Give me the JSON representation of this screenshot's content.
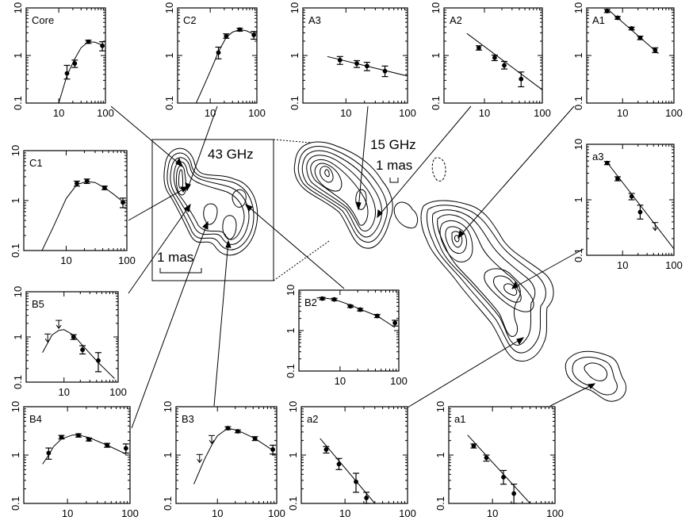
{
  "figure": {
    "contour_labels": [
      "43 GHz",
      "15 GHz"
    ],
    "scale_labels": [
      "1 mas",
      "1 mas"
    ]
  },
  "chart_data": [
    {
      "type": "scatter",
      "title": "Core",
      "xlog": true,
      "ylog": true,
      "xlim": [
        2,
        100
      ],
      "ylim": [
        0.1,
        10
      ],
      "xticklabels": [
        "10",
        "100"
      ],
      "yticklabels": [
        "0.1",
        "1",
        "10"
      ],
      "points": [
        {
          "x": 15,
          "y": 0.42,
          "lo": 0.32,
          "hi": 0.62
        },
        {
          "x": 22,
          "y": 0.68,
          "lo": 0.56,
          "hi": 0.8
        },
        {
          "x": 43,
          "y": 1.95,
          "lo": 1.8,
          "hi": 2.1
        },
        {
          "x": 86,
          "y": 1.6,
          "lo": 1.25,
          "hi": 1.95
        }
      ],
      "curve": [
        [
          10,
          0.1
        ],
        [
          15,
          0.38
        ],
        [
          22,
          0.85
        ],
        [
          30,
          1.45
        ],
        [
          43,
          1.95
        ],
        [
          60,
          1.9
        ],
        [
          86,
          1.65
        ]
      ]
    },
    {
      "type": "scatter",
      "title": "C2",
      "xlog": true,
      "ylog": true,
      "xlim": [
        2,
        100
      ],
      "ylim": [
        0.1,
        10
      ],
      "xticklabels": [
        "10",
        "100"
      ],
      "yticklabels": [
        "0.1",
        "1",
        "10"
      ],
      "points": [
        {
          "x": 15,
          "y": 1.15,
          "lo": 0.85,
          "hi": 1.5
        },
        {
          "x": 22,
          "y": 2.55,
          "lo": 2.3,
          "hi": 2.85
        },
        {
          "x": 43,
          "y": 3.5,
          "lo": 3.25,
          "hi": 3.75
        },
        {
          "x": 86,
          "y": 2.7,
          "lo": 2.2,
          "hi": 3.2
        }
      ],
      "curve": [
        [
          5,
          0.1
        ],
        [
          8,
          0.28
        ],
        [
          12,
          0.7
        ],
        [
          15,
          1.2
        ],
        [
          22,
          2.4
        ],
        [
          30,
          3.1
        ],
        [
          43,
          3.5
        ],
        [
          60,
          3.3
        ],
        [
          86,
          2.8
        ]
      ]
    },
    {
      "type": "scatter",
      "title": "A3",
      "xlog": true,
      "ylog": true,
      "xlim": [
        2,
        100
      ],
      "ylim": [
        0.1,
        10
      ],
      "xticklabels": [
        "10",
        "100"
      ],
      "yticklabels": [
        "0.1",
        "1",
        "10"
      ],
      "points": [
        {
          "x": 8,
          "y": 0.8,
          "lo": 0.65,
          "hi": 0.95
        },
        {
          "x": 15,
          "y": 0.68,
          "lo": 0.56,
          "hi": 0.78
        },
        {
          "x": 22,
          "y": 0.6,
          "lo": 0.48,
          "hi": 0.72
        },
        {
          "x": 43,
          "y": 0.47,
          "lo": 0.36,
          "hi": 0.6
        }
      ],
      "curve": [
        [
          5,
          0.95
        ],
        [
          100,
          0.37
        ]
      ]
    },
    {
      "type": "scatter",
      "title": "A2",
      "xlog": true,
      "ylog": true,
      "xlim": [
        2,
        100
      ],
      "ylim": [
        0.1,
        10
      ],
      "xticklabels": [
        "10",
        "100"
      ],
      "yticklabels": [
        "0.1",
        "1",
        "10"
      ],
      "points": [
        {
          "x": 8,
          "y": 1.45,
          "lo": 1.3,
          "hi": 1.6
        },
        {
          "x": 15,
          "y": 0.9,
          "lo": 0.78,
          "hi": 1.02
        },
        {
          "x": 22,
          "y": 0.62,
          "lo": 0.52,
          "hi": 0.75
        },
        {
          "x": 43,
          "y": 0.32,
          "lo": 0.22,
          "hi": 0.45
        }
      ],
      "curve": [
        [
          5,
          2.9
        ],
        [
          100,
          0.19
        ]
      ]
    },
    {
      "type": "scatter",
      "title": "A1",
      "xlog": true,
      "ylog": true,
      "xlim": [
        2,
        100
      ],
      "ylim": [
        0.1,
        10
      ],
      "xticklabels": [
        "10",
        "100"
      ],
      "yticklabels": [
        "0.1",
        "1",
        "10"
      ],
      "points": [
        {
          "x": 5,
          "y": 8.6,
          "lo": 8,
          "hi": 9.3
        },
        {
          "x": 8,
          "y": 6.2,
          "lo": 5.8,
          "hi": 6.6
        },
        {
          "x": 15,
          "y": 3.7,
          "lo": 3.45,
          "hi": 3.95
        },
        {
          "x": 22,
          "y": 2.35,
          "lo": 2.15,
          "hi": 2.55
        },
        {
          "x": 43,
          "y": 1.3,
          "lo": 1.15,
          "hi": 1.45
        }
      ],
      "curve": [
        [
          5,
          9.6
        ],
        [
          50,
          1.1
        ]
      ]
    },
    {
      "type": "scatter",
      "title": "a3",
      "xlog": true,
      "ylog": true,
      "xlim": [
        2,
        100
      ],
      "ylim": [
        0.1,
        10
      ],
      "xticklabels": [
        "10",
        "100"
      ],
      "yticklabels": [
        "0.1",
        "1",
        "10"
      ],
      "points": [
        {
          "x": 5,
          "y": 4.6,
          "lo": 4.3,
          "hi": 4.9
        },
        {
          "x": 8,
          "y": 2.4,
          "lo": 2.2,
          "hi": 2.6
        },
        {
          "x": 15,
          "y": 1.15,
          "lo": 1.0,
          "hi": 1.3
        },
        {
          "x": 22,
          "y": 0.6,
          "lo": 0.45,
          "hi": 0.8
        }
      ],
      "limits": [
        {
          "x": 43,
          "y": 0.33
        }
      ],
      "curve": [
        [
          5,
          4.7
        ],
        [
          100,
          0.13
        ]
      ]
    },
    {
      "type": "scatter",
      "title": "C1",
      "xlog": true,
      "ylog": true,
      "xlim": [
        2,
        100
      ],
      "ylim": [
        0.1,
        10
      ],
      "xticklabels": [
        "10",
        "100"
      ],
      "yticklabels": [
        "0.1",
        "1",
        "10"
      ],
      "points": [
        {
          "x": 15,
          "y": 2.2,
          "lo": 1.95,
          "hi": 2.45
        },
        {
          "x": 22,
          "y": 2.45,
          "lo": 2.2,
          "hi": 2.7
        },
        {
          "x": 43,
          "y": 1.8,
          "lo": 1.65,
          "hi": 1.95
        },
        {
          "x": 86,
          "y": 0.92,
          "lo": 0.72,
          "hi": 1.12
        }
      ],
      "curve": [
        [
          4,
          0.1
        ],
        [
          6,
          0.28
        ],
        [
          10,
          1.1
        ],
        [
          15,
          2.1
        ],
        [
          22,
          2.4
        ],
        [
          30,
          2.3
        ],
        [
          43,
          1.8
        ],
        [
          60,
          1.35
        ],
        [
          86,
          0.95
        ]
      ]
    },
    {
      "type": "scatter",
      "title": "B2",
      "xlog": true,
      "ylog": true,
      "xlim": [
        2,
        100
      ],
      "ylim": [
        0.1,
        10
      ],
      "xticklabels": [
        "10",
        "100"
      ],
      "yticklabels": [
        "0.1",
        "1",
        "10"
      ],
      "points": [
        {
          "x": 5,
          "y": 6.2,
          "lo": 5.8,
          "hi": 6.6
        },
        {
          "x": 8,
          "y": 5.9,
          "lo": 5.5,
          "hi": 6.3
        },
        {
          "x": 15,
          "y": 4.0,
          "lo": 3.75,
          "hi": 4.25
        },
        {
          "x": 22,
          "y": 3.3,
          "lo": 3.05,
          "hi": 3.55
        },
        {
          "x": 43,
          "y": 2.3,
          "lo": 2.1,
          "hi": 2.5
        },
        {
          "x": 86,
          "y": 1.55,
          "lo": 1.3,
          "hi": 1.8
        }
      ],
      "curve": [
        [
          4,
          6.4
        ],
        [
          5,
          6.5
        ],
        [
          8,
          5.9
        ],
        [
          15,
          4.3
        ],
        [
          22,
          3.4
        ],
        [
          43,
          2.3
        ],
        [
          86,
          1.2
        ]
      ]
    },
    {
      "type": "scatter",
      "title": "B5",
      "xlog": true,
      "ylog": true,
      "xlim": [
        2,
        100
      ],
      "ylim": [
        0.1,
        10
      ],
      "xticklabels": [
        "10",
        "100"
      ],
      "yticklabels": [
        "0.1",
        "1",
        "10"
      ],
      "points": [
        {
          "x": 15,
          "y": 1.0,
          "lo": 0.88,
          "hi": 1.12
        },
        {
          "x": 22,
          "y": 0.52,
          "lo": 0.42,
          "hi": 0.64
        },
        {
          "x": 43,
          "y": 0.3,
          "lo": 0.17,
          "hi": 0.45
        }
      ],
      "limits": [
        {
          "x": 5,
          "y": 0.95
        },
        {
          "x": 8,
          "y": 1.9
        }
      ],
      "curve": [
        [
          4,
          0.45
        ],
        [
          6,
          1.1
        ],
        [
          8,
          1.4
        ],
        [
          10,
          1.45
        ],
        [
          15,
          1.1
        ],
        [
          22,
          0.65
        ],
        [
          43,
          0.27
        ],
        [
          86,
          0.12
        ]
      ]
    },
    {
      "type": "scatter",
      "title": "B4",
      "xlog": true,
      "ylog": true,
      "xlim": [
        2,
        100
      ],
      "ylim": [
        0.1,
        10
      ],
      "xticklabels": [
        "10",
        "100"
      ],
      "yticklabels": [
        "0.1",
        "1",
        "10"
      ],
      "points": [
        {
          "x": 5,
          "y": 1.1,
          "lo": 0.82,
          "hi": 1.4
        },
        {
          "x": 8,
          "y": 2.35,
          "lo": 2.15,
          "hi": 2.55
        },
        {
          "x": 15,
          "y": 2.55,
          "lo": 2.35,
          "hi": 2.75
        },
        {
          "x": 22,
          "y": 2.1,
          "lo": 1.95,
          "hi": 2.25
        },
        {
          "x": 43,
          "y": 1.6,
          "lo": 1.45,
          "hi": 1.75
        },
        {
          "x": 86,
          "y": 1.38,
          "lo": 1.1,
          "hi": 1.7
        }
      ],
      "curve": [
        [
          4,
          0.65
        ],
        [
          5,
          1.0
        ],
        [
          6,
          1.5
        ],
        [
          8,
          2.15
        ],
        [
          12,
          2.6
        ],
        [
          15,
          2.6
        ],
        [
          22,
          2.3
        ],
        [
          43,
          1.6
        ],
        [
          86,
          1.05
        ]
      ]
    },
    {
      "type": "scatter",
      "title": "B3",
      "xlog": true,
      "ylog": true,
      "xlim": [
        2,
        100
      ],
      "ylim": [
        0.1,
        10
      ],
      "xticklabels": [
        "10",
        "100"
      ],
      "yticklabels": [
        "0.1",
        "1",
        "10"
      ],
      "points": [
        {
          "x": 15,
          "y": 3.6,
          "lo": 3.35,
          "hi": 3.85
        },
        {
          "x": 22,
          "y": 3.1,
          "lo": 2.9,
          "hi": 3.3
        },
        {
          "x": 43,
          "y": 2.2,
          "lo": 2.0,
          "hi": 2.4
        },
        {
          "x": 86,
          "y": 1.3,
          "lo": 1.05,
          "hi": 1.6
        }
      ],
      "limits": [
        {
          "x": 5,
          "y": 0.85
        },
        {
          "x": 8,
          "y": 2.1
        }
      ],
      "curve": [
        [
          4,
          0.25
        ],
        [
          6,
          0.8
        ],
        [
          8,
          1.6
        ],
        [
          10,
          2.5
        ],
        [
          15,
          3.6
        ],
        [
          22,
          3.25
        ],
        [
          43,
          2.2
        ],
        [
          86,
          1.25
        ]
      ]
    },
    {
      "type": "scatter",
      "title": "a2",
      "xlog": true,
      "ylog": true,
      "xlim": [
        2,
        100
      ],
      "ylim": [
        0.1,
        10
      ],
      "xticklabels": [
        "10",
        "100"
      ],
      "yticklabels": [
        "0.1",
        "1",
        "10"
      ],
      "points": [
        {
          "x": 5,
          "y": 1.3,
          "lo": 1.1,
          "hi": 1.5
        },
        {
          "x": 8,
          "y": 0.65,
          "lo": 0.5,
          "hi": 0.85
        },
        {
          "x": 15,
          "y": 0.28,
          "lo": 0.17,
          "hi": 0.42
        },
        {
          "x": 22,
          "y": 0.13,
          "lo": 0.1,
          "hi": 0.17
        }
      ],
      "curve": [
        [
          4,
          2.2
        ],
        [
          30,
          0.1
        ]
      ]
    },
    {
      "type": "scatter",
      "title": "a1",
      "xlog": true,
      "ylog": true,
      "xlim": [
        2,
        100
      ],
      "ylim": [
        0.1,
        10
      ],
      "xticklabels": [
        "10",
        "100"
      ],
      "yticklabels": [
        "0.1",
        "1",
        "10"
      ],
      "points": [
        {
          "x": 5,
          "y": 1.55,
          "lo": 1.4,
          "hi": 1.7
        },
        {
          "x": 8,
          "y": 0.88,
          "lo": 0.75,
          "hi": 1.0
        },
        {
          "x": 15,
          "y": 0.35,
          "lo": 0.25,
          "hi": 0.48
        },
        {
          "x": 22,
          "y": 0.16,
          "lo": 0.1,
          "hi": 0.25
        }
      ],
      "curve": [
        [
          4,
          2.6
        ],
        [
          40,
          0.1
        ]
      ]
    }
  ]
}
